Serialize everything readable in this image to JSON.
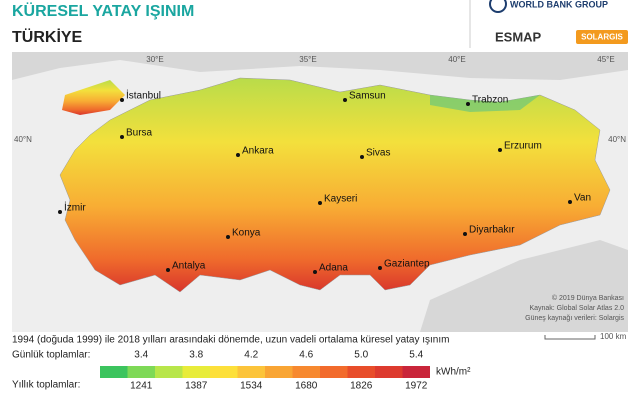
{
  "header": {
    "title": "KÜRESEL YATAY IŞINIM",
    "subtitle": "TÜRKİYE",
    "logos": [
      "WORLD BANK GROUP",
      "ESMAP",
      "SOLARGIS"
    ]
  },
  "graticule": [
    "30°E",
    "35°E",
    "40°E",
    "45°E",
    "40°N",
    "40°N"
  ],
  "cities": [
    "İstanbul",
    "Bursa",
    "Ankara",
    "Samsun",
    "Trabzon",
    "Erzurum",
    "Sivas",
    "İzmir",
    "Kayseri",
    "Van",
    "Konya",
    "Diyarbakır",
    "Antalya",
    "Adana",
    "Gaziantep"
  ],
  "credits": [
    "© 2019 Dünya Bankası",
    "Kaynak: Global Solar Atlas 2.0",
    "Güneş kaynağı verileri: Solargis"
  ],
  "scale": "100 km",
  "legend": {
    "caption": "1994 (doğuda 1999) ile 2018 yılları arasındaki dönemde, uzun vadeli ortalama küresel yatay ışınım",
    "daily_label": "Günlük toplamlar:",
    "daily": [
      "3.4",
      "3.8",
      "4.2",
      "4.6",
      "5.0",
      "5.4"
    ],
    "annual_label": "Yıllık toplamlar:",
    "annual": [
      1241,
      1387,
      1534,
      1680,
      1826,
      1972
    ],
    "unit": "kWh/m²",
    "colors": [
      "#3cc45e",
      "#7ed957",
      "#b8e64a",
      "#e8ec3a",
      "#fde03a",
      "#fcc43a",
      "#f9a534",
      "#f7892f",
      "#f26b2c",
      "#e84d2a",
      "#dd3a2e",
      "#c9253a"
    ]
  }
}
